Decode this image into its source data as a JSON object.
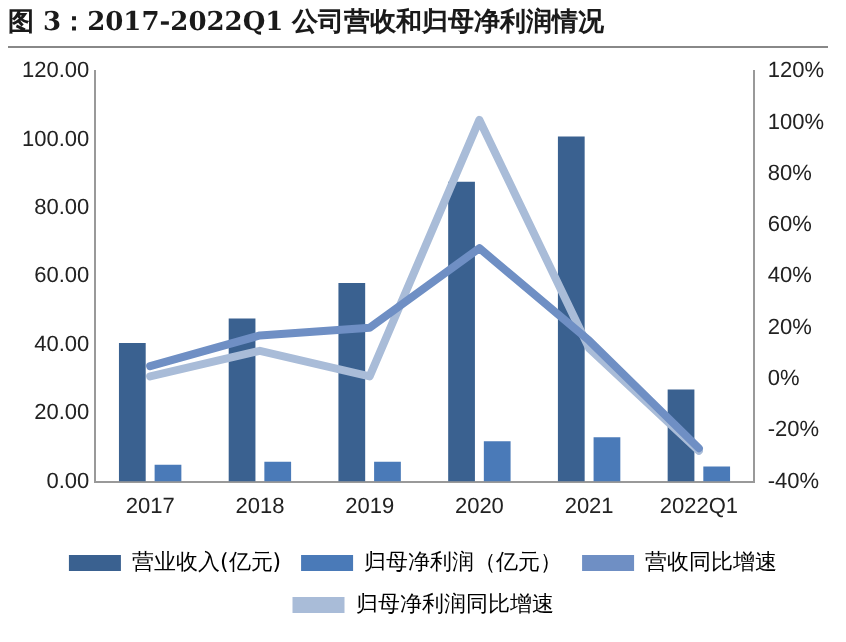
{
  "chart_data": {
    "type": "bar",
    "title": "图 3：2017-2022Q1 公司营收和归母净利润情况",
    "categories": [
      "2017",
      "2018",
      "2019",
      "2020",
      "2021",
      "2022Q1"
    ],
    "series": [
      {
        "name": "营业收入(亿元)",
        "color": "#3a6190",
        "values": [
          40.5,
          47.7,
          58.1,
          87.7,
          100.9,
          26.9
        ]
      },
      {
        "name": "归母净利润（亿元）",
        "color": "#4a7ab8",
        "values": [
          4.9,
          5.8,
          5.8,
          11.8,
          13.0,
          4.4
        ]
      },
      {
        "name": "营收同比增速",
        "type": "line",
        "axis": "y2",
        "color": "#6f8fc4",
        "values": [
          5,
          17,
          20,
          51,
          15,
          -27
        ]
      },
      {
        "name": "归母净利润同比增速",
        "type": "line",
        "axis": "y2",
        "color": "#a9bcd8",
        "values": [
          1,
          11,
          1,
          101,
          12,
          -28
        ]
      }
    ],
    "ylim": [
      0,
      120
    ],
    "yticks": [
      {
        "value": 0,
        "label": "0.00"
      },
      {
        "value": 20,
        "label": "20.00"
      },
      {
        "value": 40,
        "label": "40.00"
      },
      {
        "value": 60,
        "label": "60.00"
      },
      {
        "value": 80,
        "label": "80.00"
      },
      {
        "value": 100,
        "label": "100.00"
      },
      {
        "value": 120,
        "label": "120.00"
      }
    ],
    "y2lim": [
      -40,
      120
    ],
    "y2ticks": [
      {
        "value": -40,
        "label": "-40%"
      },
      {
        "value": -20,
        "label": "-20%"
      },
      {
        "value": 0,
        "label": "0%"
      },
      {
        "value": 20,
        "label": "20%"
      },
      {
        "value": 40,
        "label": "40%"
      },
      {
        "value": 60,
        "label": "60%"
      },
      {
        "value": 80,
        "label": "80%"
      },
      {
        "value": 100,
        "label": "100%"
      },
      {
        "value": 120,
        "label": "120%"
      }
    ],
    "grid": false,
    "legend": "bottom",
    "marker": "none"
  }
}
